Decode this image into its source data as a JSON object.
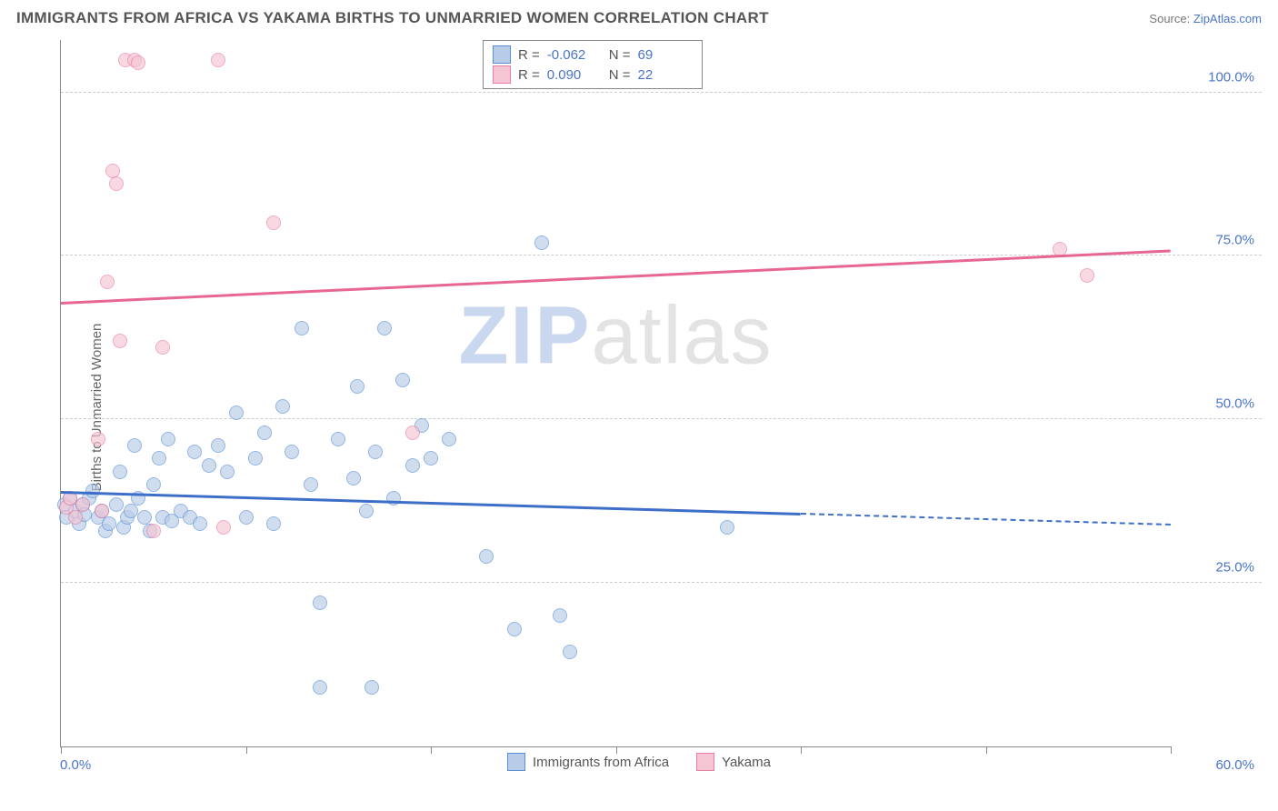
{
  "title": "IMMIGRANTS FROM AFRICA VS YAKAMA BIRTHS TO UNMARRIED WOMEN CORRELATION CHART",
  "source_label": "Source:",
  "source_name": "ZipAtlas.com",
  "ylabel": "Births to Unmarried Women",
  "watermark_bold": "ZIP",
  "watermark_rest": "atlas",
  "chart": {
    "type": "scatter",
    "background_color": "#ffffff",
    "grid_color": "#cccccc",
    "axis_color": "#888888",
    "label_color": "#4a74c9",
    "text_color": "#555555",
    "xlim": [
      0,
      60
    ],
    "ylim": [
      0,
      108
    ],
    "x_ticks": [
      0,
      10,
      20,
      30,
      40,
      50,
      60
    ],
    "x_labels": {
      "0": "0.0%",
      "60": "60.0%"
    },
    "y_gridlines": [
      25,
      50,
      75,
      100
    ],
    "y_labels": {
      "25": "25.0%",
      "50": "50.0%",
      "75": "75.0%",
      "100": "100.0%"
    },
    "marker_radius": 8,
    "marker_stroke_width": 1.5,
    "series": [
      {
        "name": "Immigrants from Africa",
        "fill_color": "#b8cce8",
        "stroke_color": "#5a8fd6",
        "fill_opacity": 0.65,
        "R": "-0.062",
        "N": "69",
        "trend": {
          "y_at_x0": 39,
          "y_at_x60": 34,
          "solid_until_x": 40,
          "color": "#3d6fc9"
        },
        "points": [
          [
            0.2,
            37
          ],
          [
            0.3,
            35
          ],
          [
            0.5,
            38
          ],
          [
            0.8,
            36
          ],
          [
            1.0,
            34
          ],
          [
            1.2,
            37
          ],
          [
            1.3,
            35.5
          ],
          [
            1.5,
            38
          ],
          [
            1.7,
            39
          ],
          [
            2.0,
            35
          ],
          [
            2.2,
            36
          ],
          [
            2.4,
            33
          ],
          [
            2.6,
            34
          ],
          [
            3.0,
            37
          ],
          [
            3.2,
            42
          ],
          [
            3.4,
            33.5
          ],
          [
            3.6,
            35
          ],
          [
            3.8,
            36
          ],
          [
            4.0,
            46
          ],
          [
            4.2,
            38
          ],
          [
            4.5,
            35
          ],
          [
            4.8,
            33
          ],
          [
            5.0,
            40
          ],
          [
            5.3,
            44
          ],
          [
            5.5,
            35
          ],
          [
            5.8,
            47
          ],
          [
            6.0,
            34.5
          ],
          [
            6.5,
            36
          ],
          [
            7.0,
            35
          ],
          [
            7.2,
            45
          ],
          [
            7.5,
            34
          ],
          [
            8.0,
            43
          ],
          [
            8.5,
            46
          ],
          [
            9.0,
            42
          ],
          [
            9.5,
            51
          ],
          [
            10.0,
            35
          ],
          [
            10.5,
            44
          ],
          [
            11.0,
            48
          ],
          [
            11.5,
            34
          ],
          [
            12.0,
            52
          ],
          [
            12.5,
            45
          ],
          [
            13.0,
            64
          ],
          [
            13.5,
            40
          ],
          [
            14.0,
            9
          ],
          [
            14,
            22
          ],
          [
            15.0,
            47
          ],
          [
            15.8,
            41
          ],
          [
            16,
            55
          ],
          [
            16.5,
            36
          ],
          [
            16.8,
            9
          ],
          [
            17.0,
            45
          ],
          [
            17.5,
            64
          ],
          [
            18.0,
            38
          ],
          [
            18.5,
            56
          ],
          [
            19.0,
            43
          ],
          [
            19.5,
            49
          ],
          [
            20.0,
            44
          ],
          [
            21.0,
            47
          ],
          [
            23.0,
            29
          ],
          [
            24.5,
            18
          ],
          [
            26.0,
            77
          ],
          [
            27.0,
            20
          ],
          [
            27.5,
            14.5
          ],
          [
            36.0,
            33.5
          ]
        ]
      },
      {
        "name": "Yakama",
        "fill_color": "#f5c5d3",
        "stroke_color": "#e87fa0",
        "fill_opacity": 0.65,
        "R": "0.090",
        "N": "22",
        "trend": {
          "y_at_x0": 68,
          "y_at_x60": 76,
          "solid_until_x": 60,
          "color": "#e76693"
        },
        "points": [
          [
            0.3,
            36.5
          ],
          [
            0.5,
            38
          ],
          [
            0.8,
            35
          ],
          [
            1.2,
            37
          ],
          [
            2.0,
            47
          ],
          [
            2.2,
            36
          ],
          [
            2.5,
            71
          ],
          [
            2.8,
            88
          ],
          [
            3.0,
            86
          ],
          [
            3.2,
            62
          ],
          [
            3.5,
            105
          ],
          [
            4.0,
            105
          ],
          [
            4.2,
            104.5
          ],
          [
            5.0,
            33
          ],
          [
            5.5,
            61
          ],
          [
            8.5,
            105
          ],
          [
            8.8,
            33.5
          ],
          [
            11.5,
            80
          ],
          [
            19.0,
            48
          ],
          [
            54.0,
            76
          ],
          [
            55.5,
            72
          ]
        ]
      }
    ]
  },
  "legend_bottom": [
    {
      "label": "Immigrants from Africa",
      "fill": "#b8cce8",
      "stroke": "#5a8fd6"
    },
    {
      "label": "Yakama",
      "fill": "#f5c5d3",
      "stroke": "#e87fa0"
    }
  ]
}
